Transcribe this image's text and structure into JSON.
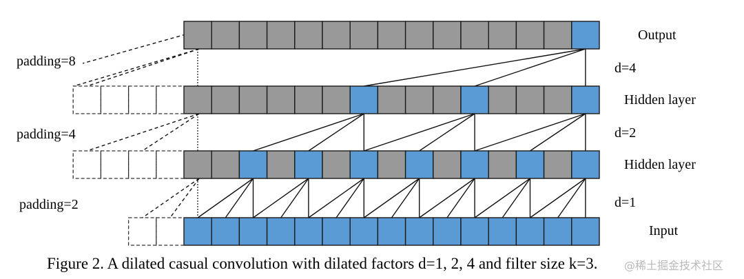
{
  "diagram": {
    "cells_per_layer": 15,
    "colors": {
      "gray": "#999999",
      "blue": "#5b9bd5",
      "border": "#1a1a1a",
      "padding_border": "#333333"
    },
    "layers": [
      {
        "name": "output",
        "label": "Output",
        "blue_indices": [
          14
        ],
        "padding_cells": 0,
        "padding_label": "padding=8"
      },
      {
        "name": "hidden-2",
        "label": "Hidden layer",
        "blue_indices": [
          6,
          10,
          14
        ],
        "padding_cells": 4,
        "padding_label": "padding=4"
      },
      {
        "name": "hidden-1",
        "label": "Hidden layer",
        "blue_indices": [
          2,
          4,
          6,
          8,
          10,
          12,
          14
        ],
        "padding_cells": 4,
        "padding_label": "padding=2"
      },
      {
        "name": "input",
        "label": "Input",
        "blue_indices": [
          0,
          1,
          2,
          3,
          4,
          5,
          6,
          7,
          8,
          9,
          10,
          11,
          12,
          13,
          14
        ],
        "padding_cells": 2,
        "padding_label": ""
      }
    ],
    "dilations": [
      "d=4",
      "d=2",
      "d=1"
    ],
    "filter_size": 3
  },
  "caption": "Figure 2. A dilated casual convolution with dilated factors d=1, 2, 4 and filter size k=3.",
  "watermark": "@稀土掘金技术社区"
}
